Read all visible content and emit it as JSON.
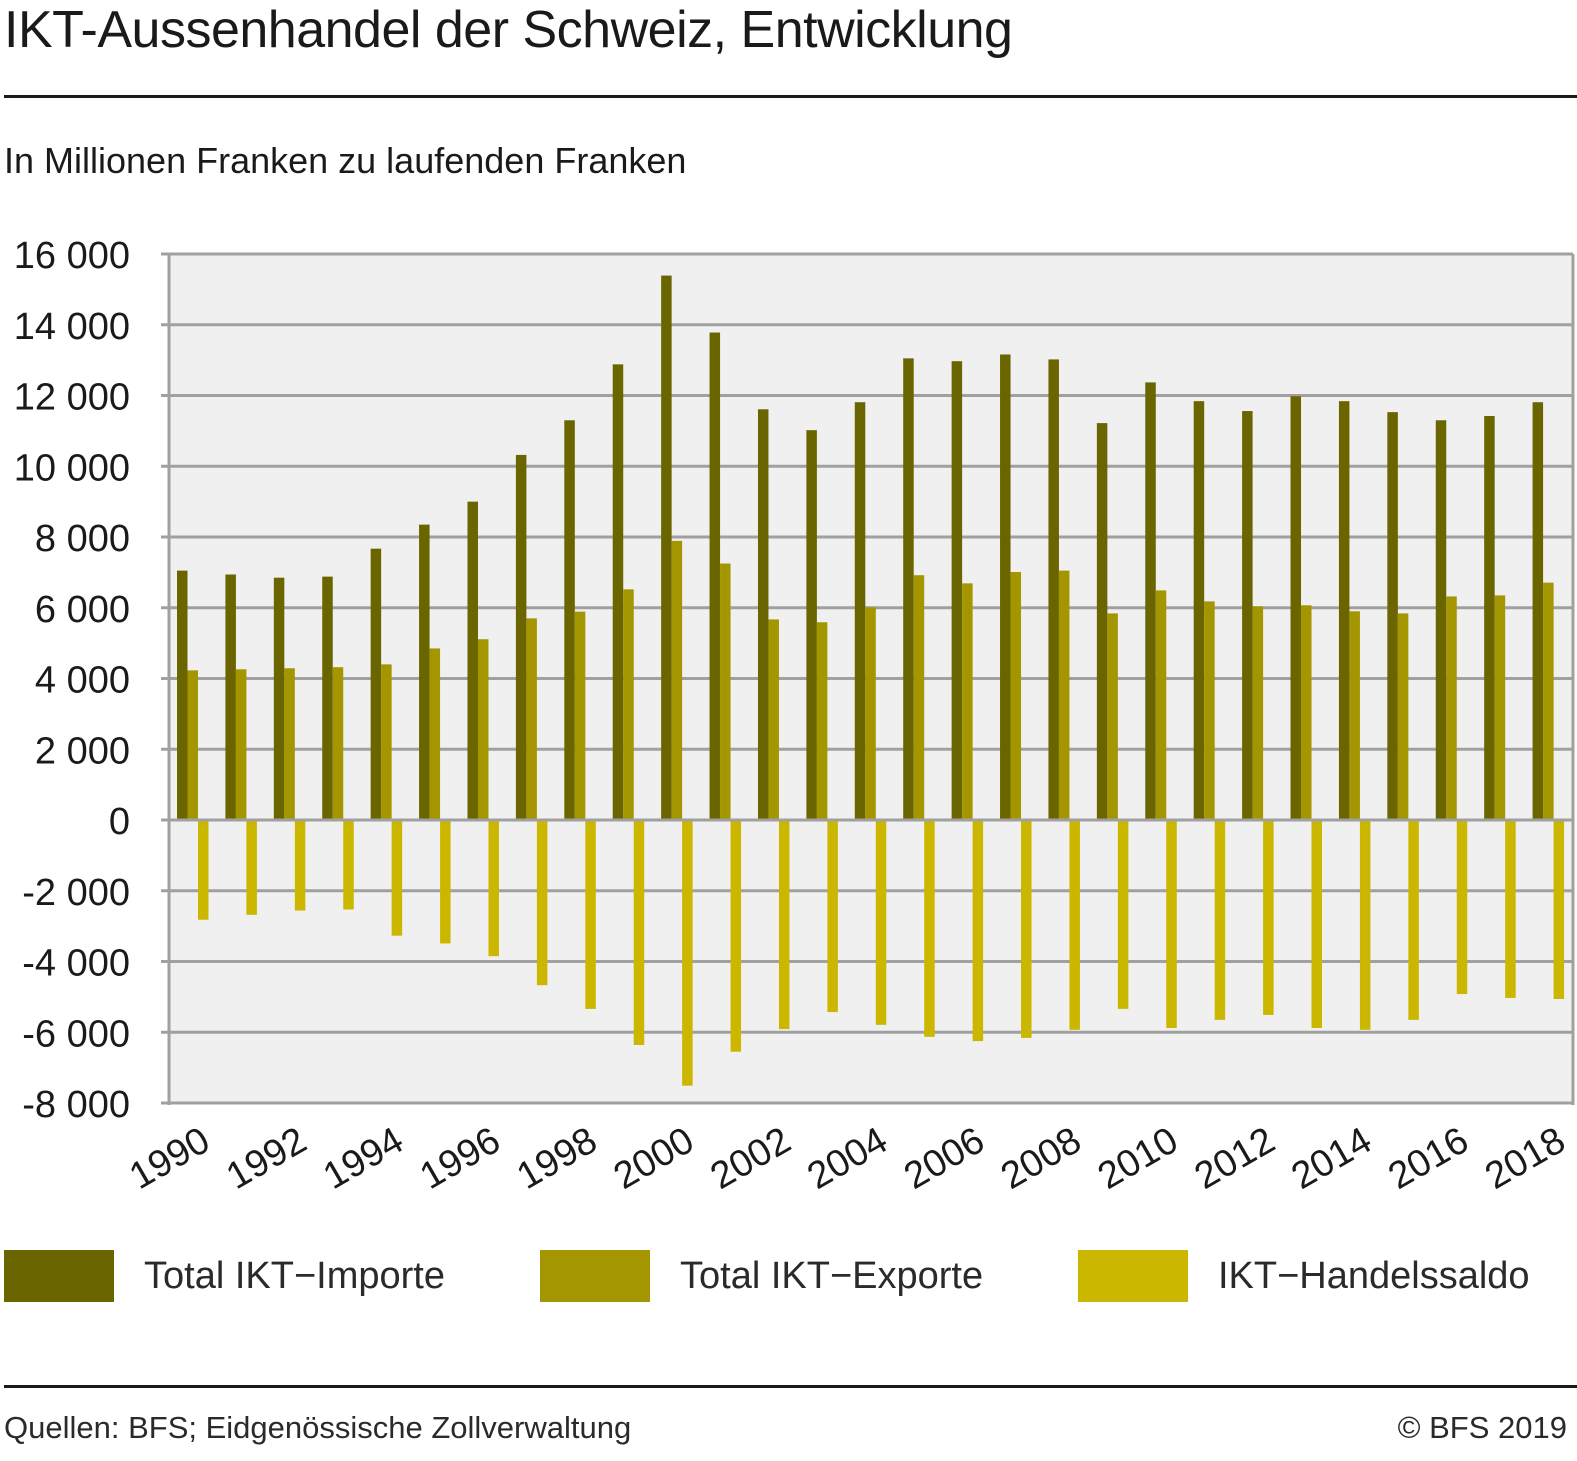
{
  "header": {
    "title": "IKT-Aussenhandel der Schweiz, Entwicklung",
    "subtitle": "In Millionen Franken zu laufenden Franken"
  },
  "legend": [
    {
      "label": "Total IKT−Importe",
      "color": "#6b6500"
    },
    {
      "label": "Total IKT−Exporte",
      "color": "#a39600"
    },
    {
      "label": "IKT−Handelssaldo",
      "color": "#cbb700"
    }
  ],
  "footer": {
    "source": "Quellen: BFS; Eidgenössische Zollverwaltung",
    "copyright": "© BFS 2019"
  },
  "colors": {
    "plot_background": "#f0f0f0",
    "grid": "#a0a0a0",
    "text": "#1a1a1a"
  },
  "chart_data": {
    "type": "bar",
    "title": "IKT-Aussenhandel der Schweiz, Entwicklung",
    "subtitle": "In Millionen Franken zu laufenden Franken",
    "xlabel": "",
    "ylabel": "",
    "ylim": [
      -8000,
      16000
    ],
    "yticks": [
      16000,
      14000,
      12000,
      10000,
      8000,
      6000,
      4000,
      2000,
      0,
      -2000,
      -4000,
      -6000,
      -8000
    ],
    "ytick_labels": [
      "16 000",
      "14 000",
      "12 000",
      "10 000",
      "8 000",
      "6 000",
      "4 000",
      "2 000",
      "0",
      "-2 000",
      "-4 000",
      "-6 000",
      "-8 000"
    ],
    "grid": true,
    "legend_position": "bottom",
    "categories": [
      "1990",
      "1991",
      "1992",
      "1993",
      "1994",
      "1995",
      "1996",
      "1997",
      "1998",
      "1999",
      "2000",
      "2001",
      "2002",
      "2003",
      "2004",
      "2005",
      "2006",
      "2007",
      "2008",
      "2009",
      "2010",
      "2011",
      "2012",
      "2013",
      "2014",
      "2015",
      "2016",
      "2017",
      "2018"
    ],
    "xtick_labels": [
      "1990",
      "1992",
      "1994",
      "1996",
      "1998",
      "2000",
      "2002",
      "2004",
      "2006",
      "2008",
      "2010",
      "2012",
      "2014",
      "2016",
      "2018"
    ],
    "series": [
      {
        "name": "Total IKT−Importe",
        "color": "#6b6500",
        "values": [
          7050,
          6940,
          6850,
          6880,
          7670,
          8350,
          9000,
          10320,
          11300,
          12880,
          15390,
          13780,
          11610,
          11020,
          11810,
          13050,
          12970,
          13160,
          13020,
          11220,
          12370,
          11840,
          11560,
          11980,
          11840,
          11530,
          11300,
          11420,
          11810
        ]
      },
      {
        "name": "Total IKT−Exporte",
        "color": "#a39600",
        "values": [
          4230,
          4260,
          4290,
          4320,
          4400,
          4850,
          5110,
          5700,
          5890,
          6520,
          7890,
          7250,
          5670,
          5590,
          6010,
          6920,
          6690,
          7010,
          7050,
          5840,
          6490,
          6180,
          6040,
          6070,
          5900,
          5840,
          6320,
          6350,
          6710
        ]
      },
      {
        "name": "IKT−Handelssaldo",
        "color": "#cbb700",
        "values": [
          -2820,
          -2680,
          -2560,
          -2530,
          -3270,
          -3490,
          -3850,
          -4670,
          -5340,
          -6360,
          -7510,
          -6550,
          -5910,
          -5430,
          -5790,
          -6130,
          -6250,
          -6160,
          -5930,
          -5340,
          -5880,
          -5650,
          -5510,
          -5880,
          -5930,
          -5650,
          -4920,
          -5030,
          -5060
        ]
      }
    ]
  }
}
